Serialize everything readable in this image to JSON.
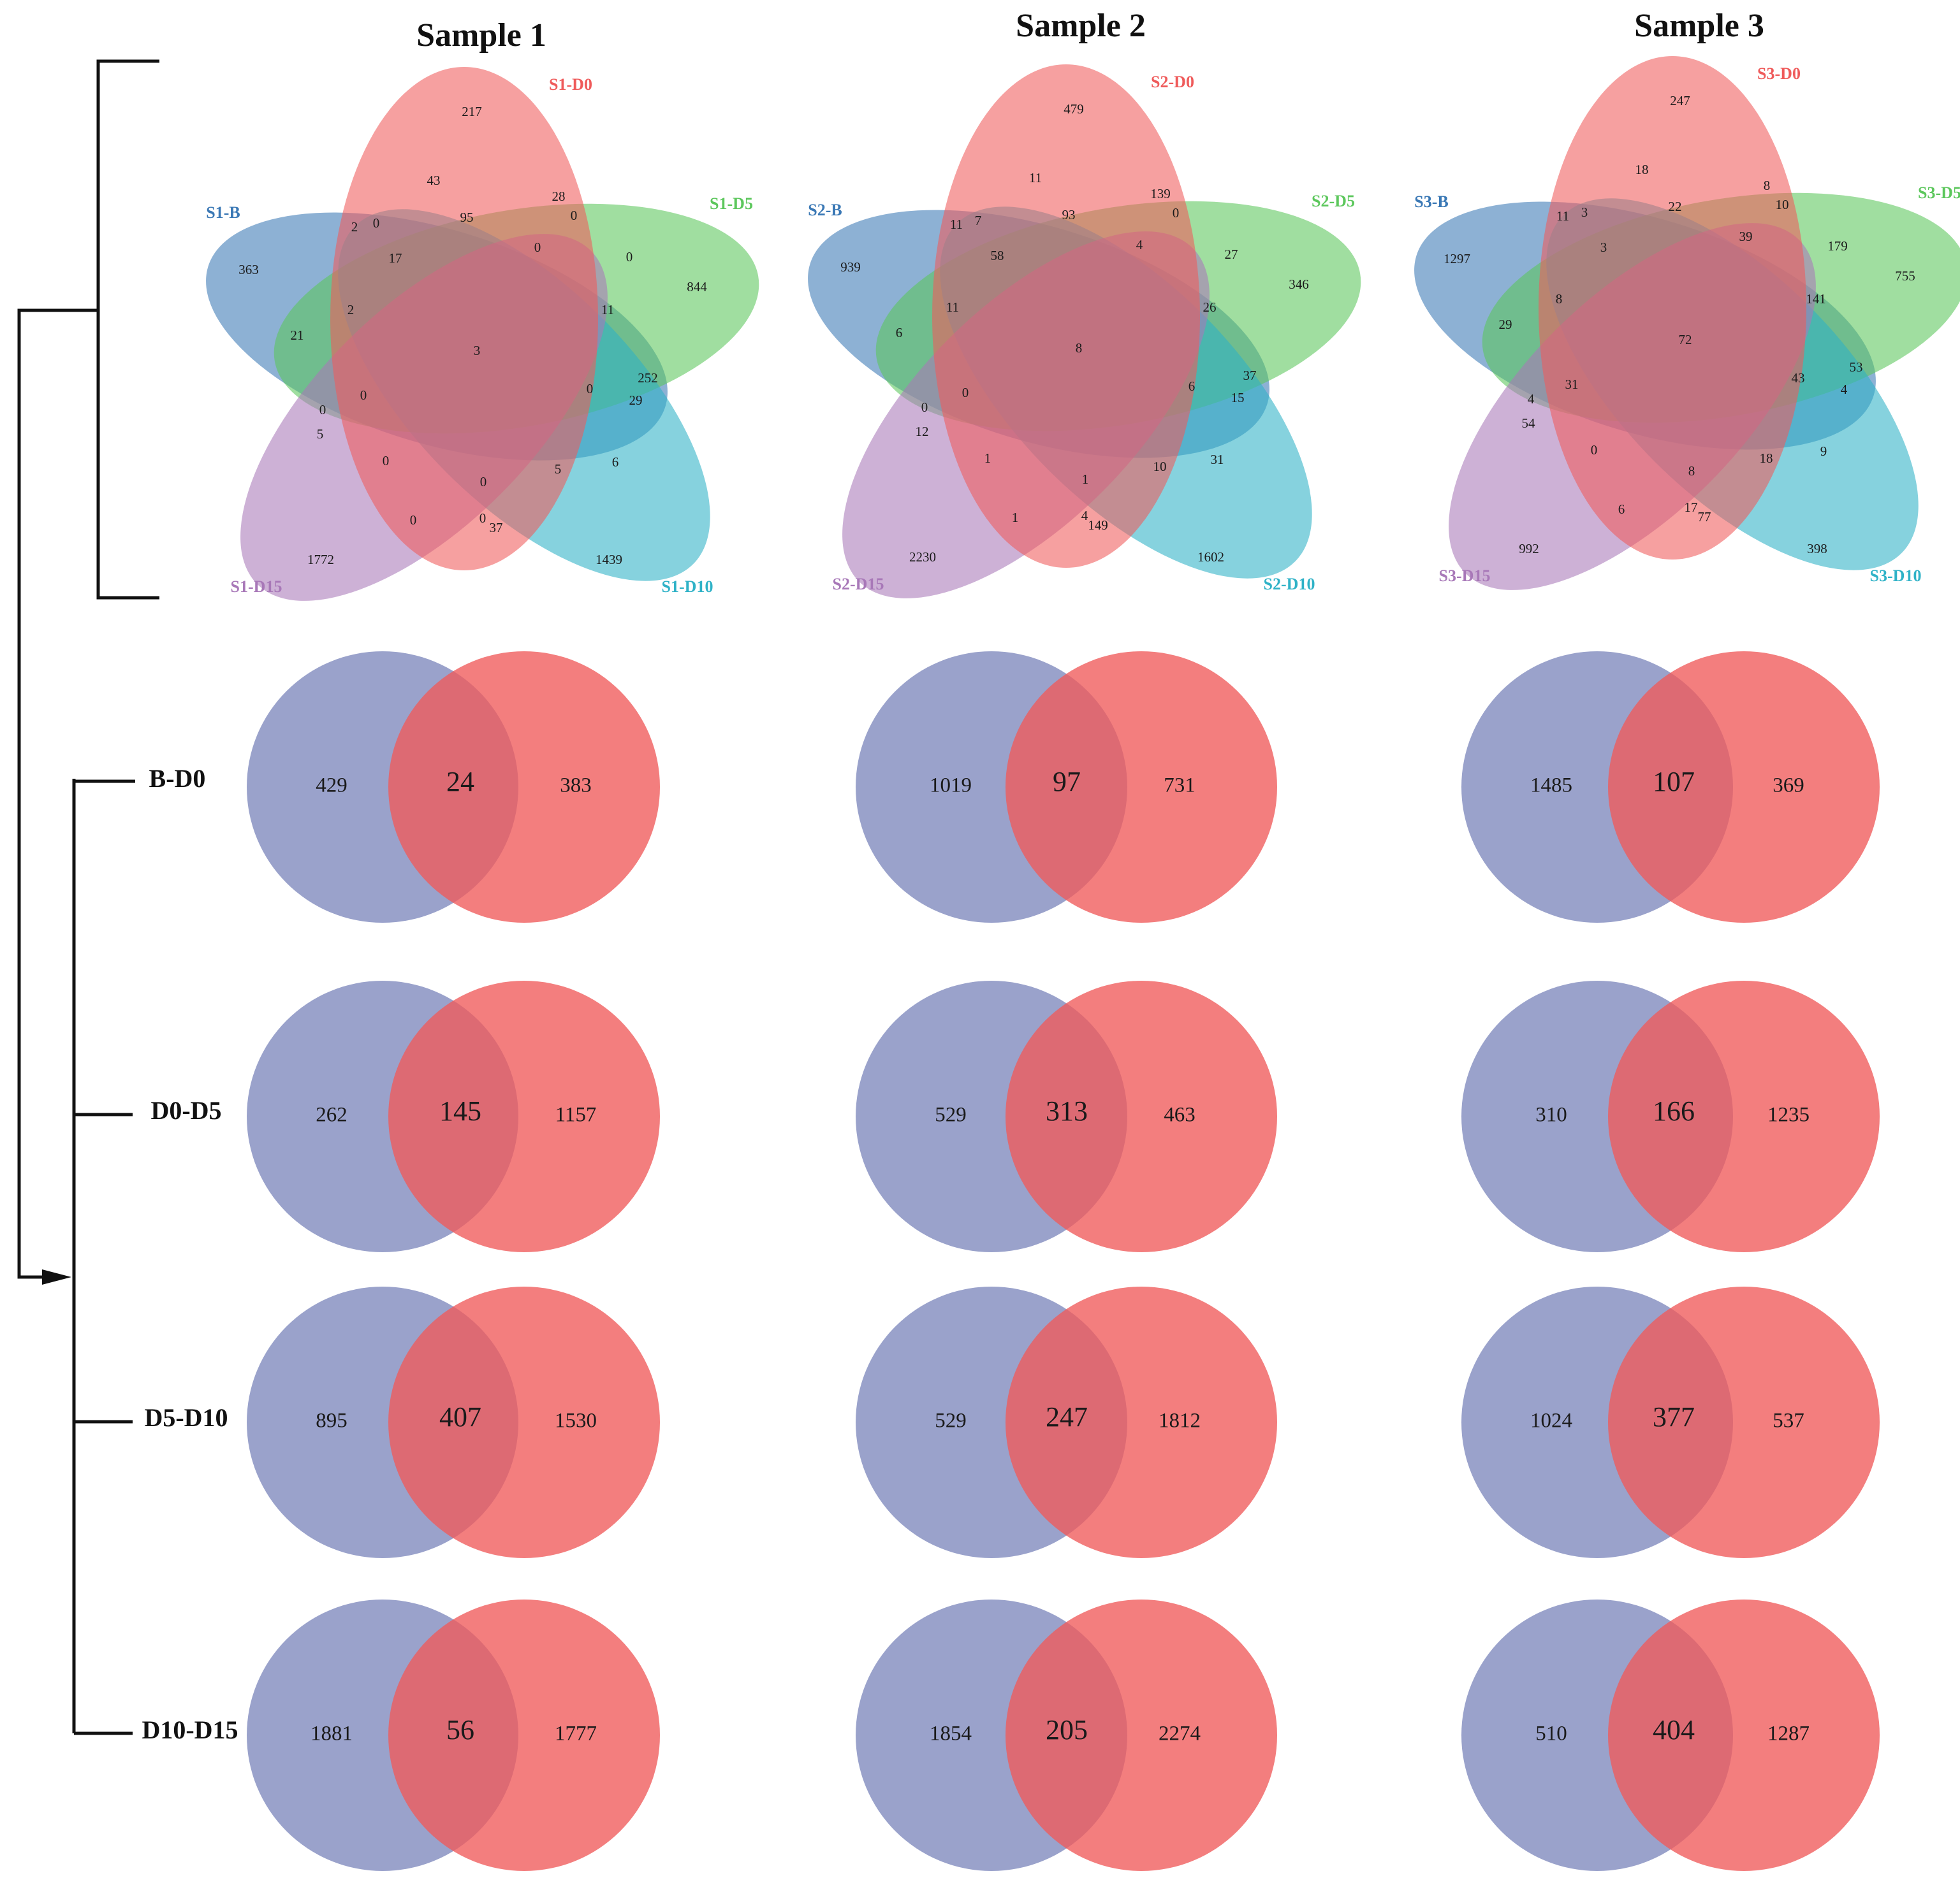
{
  "colors": {
    "red": "#ef5b5b",
    "blue": "#3a78b5",
    "green": "#5cc75c",
    "cyan": "#2fb2c7",
    "purple": "#a878b8",
    "venn2_left": "#6f7ab5",
    "venn2_right": "#f05a5a",
    "bracket": "#111111"
  },
  "columns": [
    {
      "title": "Sample 1",
      "five": {
        "labels": {
          "d0": "S1-D0",
          "b": "S1-B",
          "d5": "S1-D5",
          "d10": "S1-D10",
          "d15": "S1-D15"
        },
        "values": [
          "217",
          "43",
          "95",
          "28",
          "0",
          "2",
          "0",
          "17",
          "0",
          "0",
          "363",
          "844",
          "2",
          "21",
          "3",
          "11",
          "252",
          "29",
          "0",
          "0",
          "5",
          "0",
          "0",
          "6",
          "5",
          "0",
          "0",
          "0",
          "37",
          "1772",
          "1439"
        ]
      },
      "pairs": [
        {
          "left": "429",
          "mid": "24",
          "right": "383"
        },
        {
          "left": "262",
          "mid": "145",
          "right": "1157"
        },
        {
          "left": "895",
          "mid": "407",
          "right": "1530"
        },
        {
          "left": "1881",
          "mid": "56",
          "right": "1777"
        }
      ]
    },
    {
      "title": "Sample 2",
      "five": {
        "labels": {
          "d0": "S2-D0",
          "b": "S2-B",
          "d5": "S2-D5",
          "d10": "S2-D10",
          "d15": "S2-D15"
        },
        "values": [
          "479",
          "11",
          "93",
          "139",
          "0",
          "11",
          "7",
          "58",
          "4",
          "27",
          "939",
          "346",
          "11",
          "6",
          "8",
          "26",
          "37",
          "15",
          "0",
          "0",
          "12",
          "6",
          "1",
          "31",
          "10",
          "1",
          "1",
          "4",
          "149",
          "2230",
          "1602"
        ]
      },
      "pairs": [
        {
          "left": "1019",
          "mid": "97",
          "right": "731"
        },
        {
          "left": "529",
          "mid": "313",
          "right": "463"
        },
        {
          "left": "529",
          "mid": "247",
          "right": "1812"
        },
        {
          "left": "1854",
          "mid": "205",
          "right": "2274"
        }
      ]
    },
    {
      "title": "Sample 3",
      "five": {
        "labels": {
          "d0": "S3-D0",
          "b": "S3-B",
          "d5": "S3-D5",
          "d10": "S3-D10",
          "d15": "S3-D15"
        },
        "values": [
          "247",
          "18",
          "22",
          "8",
          "10",
          "11",
          "3",
          "3",
          "39",
          "179",
          "1297",
          "755",
          "8",
          "29",
          "72",
          "141",
          "53",
          "4",
          "4",
          "31",
          "54",
          "43",
          "0",
          "9",
          "18",
          "6",
          "8",
          "17",
          "77",
          "992",
          "398"
        ]
      },
      "pairs": [
        {
          "left": "1485",
          "mid": "107",
          "right": "369"
        },
        {
          "left": "310",
          "mid": "166",
          "right": "1235"
        },
        {
          "left": "1024",
          "mid": "377",
          "right": "537"
        },
        {
          "left": "510",
          "mid": "404",
          "right": "1287"
        }
      ]
    }
  ],
  "row_labels": [
    "B-D0",
    "D0-D5",
    "D5-D10",
    "D10-D15"
  ]
}
